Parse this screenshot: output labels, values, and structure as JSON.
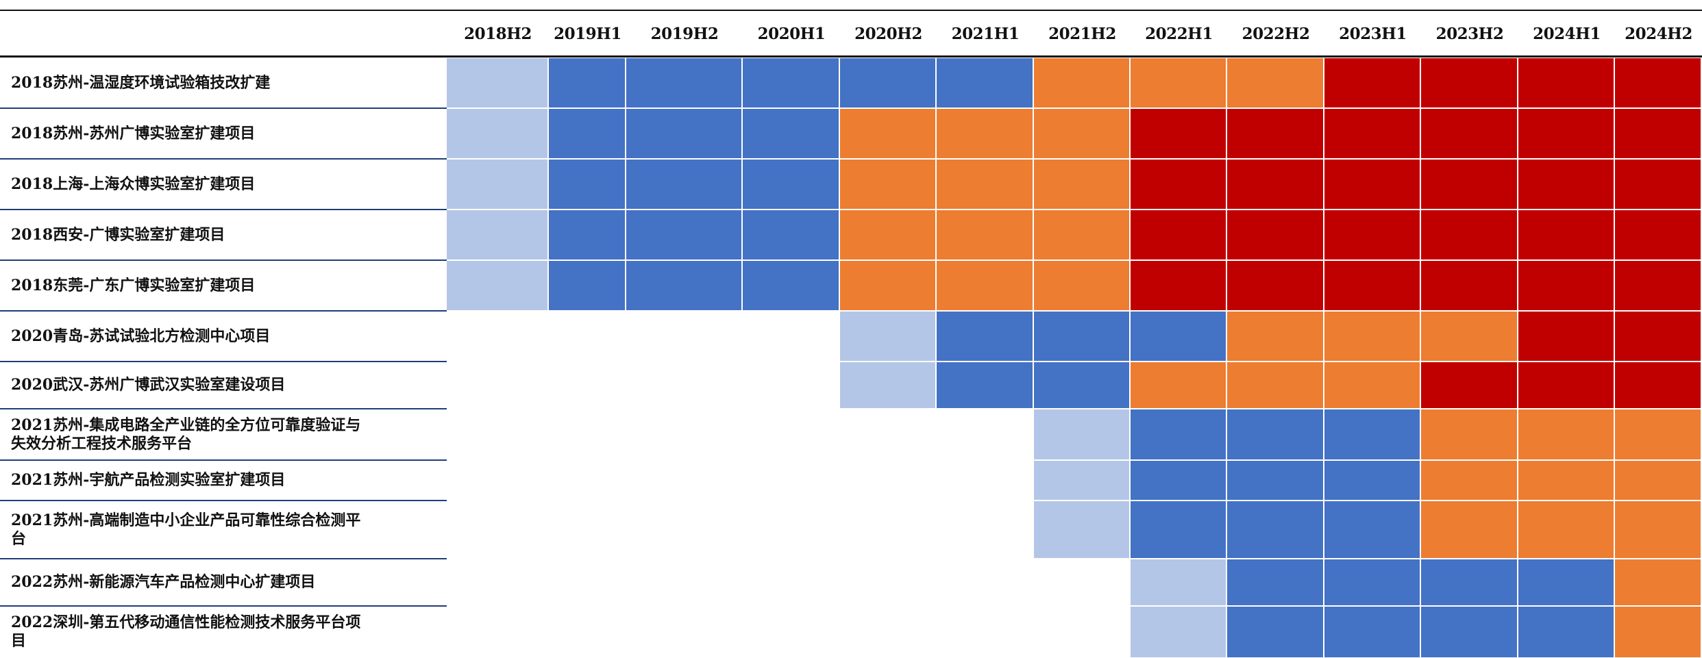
{
  "colors": {
    "planned": "#b4c6e7",
    "construction": "#4472c4",
    "ramp_up": "#ed7d31",
    "mature": "#c00000"
  },
  "chart_data": {
    "type": "heatmap",
    "periods": [
      "2018H2",
      "2019H1",
      "2019H2",
      "2020H1",
      "2020H2",
      "2021H1",
      "2021H2",
      "2022H1",
      "2022H2",
      "2023H1",
      "2023H2",
      "2024H1",
      "2024H2"
    ],
    "stage_codes": {
      "0": "none",
      "1": "planned",
      "2": "construction",
      "3": "ramp_up",
      "4": "mature"
    },
    "rows": [
      {
        "label": [
          "2018苏州-温湿度环境试验箱技改扩建"
        ],
        "stages": [
          1,
          2,
          2,
          2,
          2,
          2,
          3,
          3,
          3,
          4,
          4,
          4,
          4
        ]
      },
      {
        "label": [
          "2018苏州-苏州广博实验室扩建项目"
        ],
        "stages": [
          1,
          2,
          2,
          2,
          3,
          3,
          3,
          4,
          4,
          4,
          4,
          4,
          4
        ]
      },
      {
        "label": [
          "2018上海-上海众博实验室扩建项目"
        ],
        "stages": [
          1,
          2,
          2,
          2,
          3,
          3,
          3,
          4,
          4,
          4,
          4,
          4,
          4
        ]
      },
      {
        "label": [
          "2018西安-广博实验室扩建项目"
        ],
        "stages": [
          1,
          2,
          2,
          2,
          3,
          3,
          3,
          4,
          4,
          4,
          4,
          4,
          4
        ]
      },
      {
        "label": [
          "2018东莞-广东广博实验室扩建项目"
        ],
        "stages": [
          1,
          2,
          2,
          2,
          3,
          3,
          3,
          4,
          4,
          4,
          4,
          4,
          4
        ]
      },
      {
        "label": [
          "2020青岛-苏试试验北方检测中心项目"
        ],
        "stages": [
          0,
          0,
          0,
          0,
          1,
          2,
          2,
          2,
          3,
          3,
          3,
          4,
          4
        ]
      },
      {
        "label": [
          "2020武汉-苏州广博武汉实验室建设项目"
        ],
        "stages": [
          0,
          0,
          0,
          0,
          1,
          2,
          2,
          3,
          3,
          3,
          4,
          4,
          4
        ]
      },
      {
        "label": [
          "2021苏州-集成电路全产业链的全方位可靠度验证与",
          "失效分析工程技术服务平台"
        ],
        "stages": [
          0,
          0,
          0,
          0,
          0,
          0,
          1,
          2,
          2,
          2,
          3,
          3,
          3
        ]
      },
      {
        "label": [
          "2021苏州-宇航产品检测实验室扩建项目"
        ],
        "stages": [
          0,
          0,
          0,
          0,
          0,
          0,
          1,
          2,
          2,
          2,
          3,
          3,
          3
        ]
      },
      {
        "label": [
          "2021苏州-高端制造中小企业产品可靠性综合检测平",
          "台"
        ],
        "stages": [
          0,
          0,
          0,
          0,
          0,
          0,
          1,
          2,
          2,
          2,
          3,
          3,
          3
        ]
      },
      {
        "label": [
          "2022苏州-新能源汽车产品检测中心扩建项目"
        ],
        "stages": [
          0,
          0,
          0,
          0,
          0,
          0,
          0,
          1,
          2,
          2,
          2,
          2,
          3
        ]
      },
      {
        "label": [
          "2022深圳-第五代移动通信性能检测技术服务平台项",
          "目"
        ],
        "stages": [
          0,
          0,
          0,
          0,
          0,
          0,
          0,
          1,
          2,
          2,
          2,
          2,
          3
        ]
      }
    ]
  }
}
